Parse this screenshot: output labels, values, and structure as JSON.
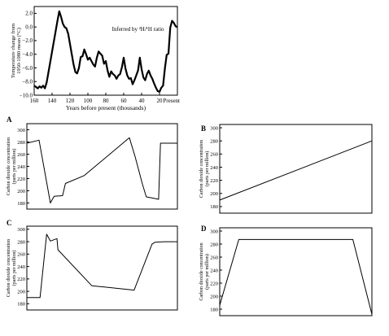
{
  "chart_data": [
    {
      "id": "top",
      "type": "line",
      "panel_label": "",
      "annotation": "Inferred by ²H/¹H ratio",
      "ylabel_lines": [
        "Temperature change from",
        "1950-1980 mean (°C)"
      ],
      "xlabel": "Years before present (thousands)",
      "xlim": [
        160,
        0
      ],
      "ylim": [
        -10,
        3
      ],
      "x_ticks": [
        160,
        140,
        120,
        100,
        80,
        60,
        40,
        20,
        0
      ],
      "x_tick_labels": [
        "160",
        "140",
        "120",
        "100",
        "80",
        "60",
        "40",
        "20",
        "Present"
      ],
      "y_ticks": [
        2,
        0,
        -2,
        -4,
        -6,
        -8,
        -10
      ],
      "y_tick_labels": [
        "2.0",
        "0.0",
        "−2.0",
        "−4.0",
        "−6.0",
        "−8.0",
        "−10.0"
      ],
      "x": [
        160,
        158,
        156,
        154,
        152,
        150,
        148,
        146,
        144,
        142,
        140,
        138,
        136,
        134,
        132,
        130,
        128,
        126,
        124,
        122,
        120,
        118,
        116,
        114,
        112,
        110,
        108,
        106,
        104,
        102,
        100,
        98,
        96,
        94,
        92,
        90,
        88,
        86,
        84,
        82,
        80,
        78,
        76,
        74,
        72,
        70,
        68,
        66,
        64,
        62,
        60,
        58,
        56,
        54,
        52,
        50,
        48,
        46,
        44,
        42,
        40,
        38,
        36,
        34,
        32,
        30,
        28,
        26,
        24,
        22,
        20,
        18,
        16,
        14,
        12,
        10,
        8,
        6,
        4,
        2,
        0
      ],
      "values": [
        -8.6,
        -8.8,
        -9.0,
        -8.7,
        -8.9,
        -8.6,
        -9.0,
        -8.1,
        -6.6,
        -5.1,
        -3.6,
        -2.1,
        -0.6,
        0.9,
        2.3,
        1.5,
        0.5,
        0.0,
        -0.2,
        -1.0,
        -2.5,
        -4.0,
        -5.5,
        -6.6,
        -6.8,
        -6.0,
        -4.4,
        -4.3,
        -3.3,
        -4.0,
        -4.8,
        -4.5,
        -5.0,
        -5.5,
        -5.8,
        -4.5,
        -3.6,
        -3.9,
        -4.2,
        -5.4,
        -5.0,
        -6.4,
        -7.3,
        -6.5,
        -6.9,
        -7.1,
        -7.6,
        -7.1,
        -6.9,
        -5.9,
        -4.5,
        -6.1,
        -7.1,
        -7.6,
        -7.5,
        -8.4,
        -7.8,
        -7.1,
        -6.4,
        -4.5,
        -6.2,
        -7.4,
        -7.8,
        -6.9,
        -6.4,
        -7.1,
        -7.6,
        -8.3,
        -8.9,
        -9.4,
        -9.5,
        -8.9,
        -8.6,
        -6.1,
        -4.1,
        -3.9,
        -0.1,
        0.9,
        0.6,
        0.1,
        0.0
      ]
    },
    {
      "id": "A",
      "type": "line",
      "panel_label": "A",
      "ylabel_lines": [
        "Carbon dioxide concentration",
        "(parts per million)"
      ],
      "xlim": [
        160,
        0
      ],
      "ylim": [
        170,
        310
      ],
      "y_ticks": [
        180,
        200,
        220,
        240,
        260,
        280,
        300
      ],
      "y_tick_labels": [
        "180",
        "200",
        "220",
        "240",
        "260",
        "280",
        "300"
      ],
      "x": [
        160,
        147,
        135,
        131,
        122,
        119,
        99,
        51,
        45,
        37,
        33,
        26,
        20,
        18,
        16,
        14,
        12,
        10,
        8,
        6,
        4,
        2,
        0
      ],
      "values": [
        278,
        283,
        180,
        191,
        192,
        212,
        225,
        287,
        256,
        210,
        190,
        188,
        186,
        278,
        278,
        278,
        278,
        278,
        278,
        278,
        278,
        278,
        278
      ]
    },
    {
      "id": "B",
      "type": "line",
      "panel_label": "B",
      "ylabel_lines": [
        "Carbon dioxide concentration",
        "(parts per million)"
      ],
      "xlim": [
        160,
        0
      ],
      "ylim": [
        170,
        305
      ],
      "y_ticks": [
        180,
        200,
        220,
        240,
        260,
        280,
        300
      ],
      "y_tick_labels": [
        "180",
        "200",
        "220",
        "240",
        "260",
        "280",
        "300"
      ],
      "x": [
        160,
        0
      ],
      "values": [
        190,
        280
      ]
    },
    {
      "id": "C",
      "type": "line",
      "panel_label": "C",
      "ylabel_lines": [
        "Carbon dioxide concentration",
        "(parts per million)"
      ],
      "xlim": [
        160,
        0
      ],
      "ylim": [
        170,
        305
      ],
      "y_ticks": [
        180,
        200,
        220,
        240,
        260,
        280,
        300
      ],
      "y_tick_labels": [
        "180",
        "200",
        "220",
        "240",
        "260",
        "280",
        "300"
      ],
      "x": [
        160,
        146,
        139,
        135,
        128,
        127,
        91,
        46,
        27,
        24,
        14,
        12,
        10,
        8,
        6,
        4,
        2,
        0
      ],
      "values": [
        190,
        190,
        292,
        281,
        285,
        267,
        209,
        202,
        276,
        279,
        280,
        280,
        280,
        280,
        280,
        280,
        280,
        280
      ]
    },
    {
      "id": "D",
      "type": "line",
      "panel_label": "D",
      "ylabel_lines": [
        "Carbon dioxide concentration",
        "(parts per million)"
      ],
      "xlim": [
        160,
        0
      ],
      "ylim": [
        170,
        305
      ],
      "y_ticks": [
        180,
        200,
        220,
        240,
        260,
        280,
        300
      ],
      "y_tick_labels": [
        "180",
        "200",
        "220",
        "240",
        "260",
        "280",
        "300"
      ],
      "x": [
        160,
        140,
        20,
        0
      ],
      "values": [
        186,
        287,
        287,
        172
      ]
    }
  ]
}
